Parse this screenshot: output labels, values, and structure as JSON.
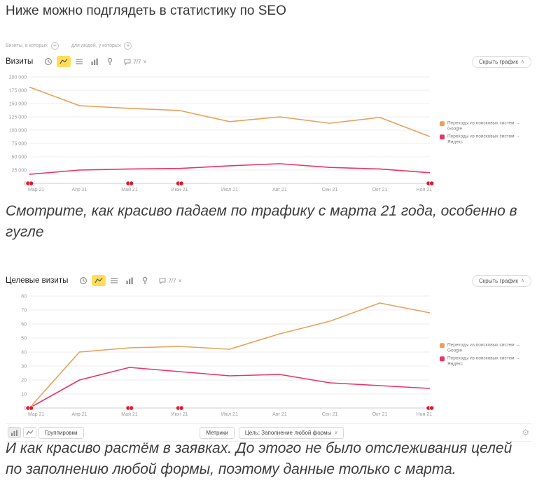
{
  "page": {
    "title": "Ниже можно подглядеть в статистику по SEO",
    "caption1": "Смотрите, как красиво падаем по трафику с марта 21 года, особенно в\nгугле",
    "caption2": "И как красиво растём в заявках. До этого не было отслеживания целей\nпо заполнению любой формы, поэтому данные только с марта."
  },
  "widget1": {
    "filter_visits": "Визиты, в которых",
    "filter_people": "для людей, у которых",
    "title": "Визиты",
    "period": "7/7",
    "period_caret": "∨",
    "hide_chart": "Скрыть график",
    "hide_caret": "∧"
  },
  "widget2": {
    "title": "Целевые визиты",
    "period": "7/7",
    "period_caret": "∨",
    "hide_chart": "Скрыть график",
    "hide_caret": "∧",
    "groupings": "Группировки",
    "metrics": "Метрики",
    "goal": "Цель: Заполнение любой формы",
    "goal_caret": "∨",
    "gear": "⚙"
  },
  "colors": {
    "selected_tool_bg": "#ffdd57",
    "google_line": "#e6a15a",
    "yandex_line": "#e83568",
    "annotation_red": "#e0162b"
  },
  "chart_data": [
    {
      "type": "line",
      "title": "Визиты",
      "x": [
        "Мар 21",
        "Апр 21",
        "Май 21",
        "Июн 21",
        "Июл 21",
        "Авг 21",
        "Сен 21",
        "Окт 21",
        "Ноя 21"
      ],
      "series": [
        {
          "name": "Переходы из поисковых систем → Google",
          "color": "#e6a15a",
          "values": [
            181000,
            146000,
            141000,
            137000,
            116000,
            125000,
            113000,
            124000,
            88000
          ]
        },
        {
          "name": "Переходы из поисковых систем → Яндекс",
          "color": "#e83568",
          "values": [
            17000,
            25000,
            27000,
            28000,
            33000,
            37000,
            30000,
            27000,
            20000
          ]
        }
      ],
      "ylim": [
        0,
        200000
      ],
      "yticks": [
        0,
        25000,
        50000,
        75000,
        100000,
        125000,
        150000,
        175000,
        200000
      ],
      "ytick_labels": [
        "0",
        "25 000",
        "50 000",
        "75 000",
        "100 000",
        "125 000",
        "150 000",
        "175 000",
        "200 000"
      ],
      "annotations_x": [
        0,
        2,
        3,
        8
      ],
      "grid": true,
      "legend_position": "right"
    },
    {
      "type": "line",
      "title": "Целевые визиты",
      "x": [
        "Мар 21",
        "Апр 21",
        "Май 21",
        "Июн 21",
        "Июл 21",
        "Авг 21",
        "Сен 21",
        "Окт 21",
        "Ноя 21"
      ],
      "series": [
        {
          "name": "Переходы из поисковых систем → Google",
          "color": "#e6a15a",
          "values": [
            0,
            40,
            43,
            44,
            42,
            53,
            62,
            75,
            68
          ]
        },
        {
          "name": "Переходы из поисковых систем → Яндекс",
          "color": "#e83568",
          "values": [
            0,
            20,
            29,
            26,
            23,
            24,
            18,
            16,
            14
          ]
        }
      ],
      "ylim": [
        0,
        80
      ],
      "yticks": [
        0,
        10,
        20,
        30,
        40,
        50,
        60,
        70,
        80
      ],
      "ytick_labels": [
        "0",
        "10",
        "20",
        "30",
        "40",
        "50",
        "60",
        "70",
        "80"
      ],
      "annotations_x": [
        0,
        2,
        3,
        8
      ],
      "grid": true,
      "legend_position": "right"
    }
  ]
}
